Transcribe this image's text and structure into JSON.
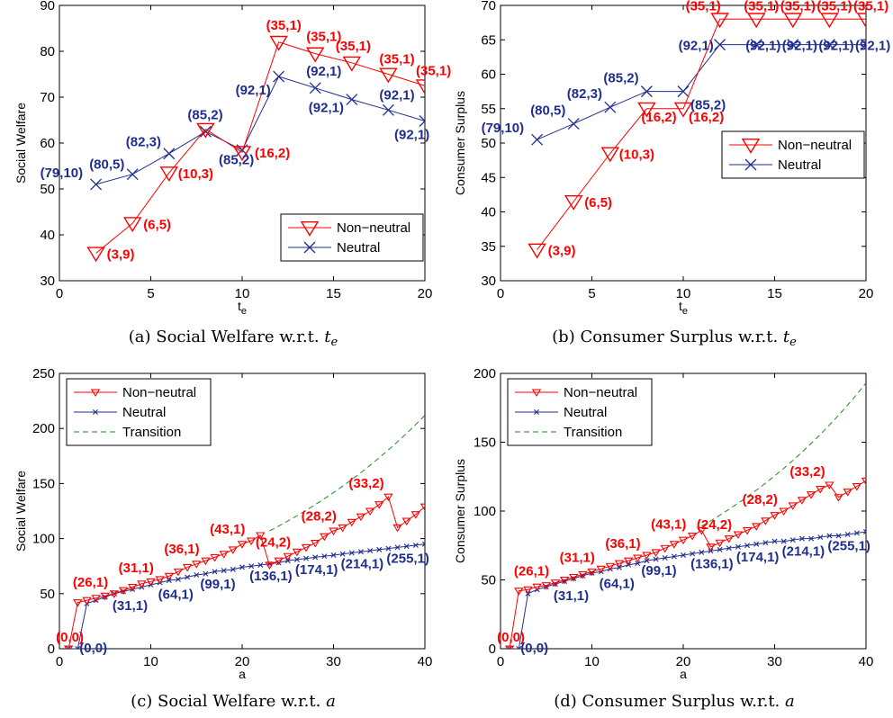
{
  "chart_data": [
    {
      "type": "line",
      "caption": "(a) Social Welfare w.r.t. t",
      "caption_sub": "e",
      "xlabel": "t",
      "xlabel_sub": "e",
      "ylabel": "Social Welfare",
      "xlim": [
        0,
        20
      ],
      "ylim": [
        30,
        90
      ],
      "xticks": [
        "0",
        "5",
        "10",
        "15",
        "20"
      ],
      "yticks": [
        "30",
        "40",
        "50",
        "60",
        "70",
        "80",
        "90"
      ],
      "legend_position": "bottom-right",
      "series": [
        {
          "name": "Non−neutral",
          "color": "#ff0000",
          "marker": "big-triangle",
          "x": [
            2,
            4,
            6,
            8,
            10,
            12,
            14,
            16,
            18,
            20
          ],
          "y": [
            36,
            42.5,
            53.5,
            63,
            58,
            82,
            79.5,
            77.5,
            75,
            72.5
          ],
          "labels": [
            "(3,9)",
            "(6,5)",
            "(10,3)",
            "",
            "(16,2)",
            "(35,1)",
            "(35,1)",
            "(35,1)",
            "(35,1)",
            "(35,1)"
          ]
        },
        {
          "name": "Neutral",
          "color": "#1f2e8f",
          "marker": "big-x",
          "x": [
            2,
            4,
            6,
            8,
            10,
            12,
            14,
            16,
            18,
            20
          ],
          "y": [
            51,
            53.2,
            57.7,
            62.5,
            58.5,
            74.5,
            72,
            69.5,
            67.2,
            64.8
          ],
          "labels": [
            "(79,10)",
            "(80,5)",
            "(82,3)",
            "(85,2)",
            "(85,2)",
            "(92,1)",
            "(92,1)",
            "(92,1)",
            "(92,1)",
            "(92,1)"
          ]
        }
      ]
    },
    {
      "type": "line",
      "caption": "(b) Consumer Surplus w.r.t. t",
      "caption_sub": "e",
      "xlabel": "t",
      "xlabel_sub": "e",
      "ylabel": "Consumer Surplus",
      "xlim": [
        0,
        20
      ],
      "ylim": [
        30,
        70
      ],
      "xticks": [
        "0",
        "5",
        "10",
        "15",
        "20"
      ],
      "yticks": [
        "30",
        "35",
        "40",
        "45",
        "50",
        "55",
        "60",
        "65",
        "70"
      ],
      "legend_position": "middle-right",
      "series": [
        {
          "name": "Non−neutral",
          "color": "#ff0000",
          "marker": "big-triangle",
          "x": [
            2,
            4,
            6,
            8,
            10,
            12,
            14,
            16,
            18,
            20
          ],
          "y": [
            34.5,
            41.5,
            48.5,
            55,
            55,
            68,
            68,
            68,
            68,
            68
          ],
          "labels": [
            "(3,9)",
            "(6,5)",
            "(10,3)",
            "(16,2)",
            "(16,2)",
            "(35,1)",
            "(35,1)",
            "(35,1)",
            "(35,1)",
            "(35,1)"
          ]
        },
        {
          "name": "Neutral",
          "color": "#1f2e8f",
          "marker": "big-x",
          "x": [
            2,
            4,
            6,
            8,
            10,
            12,
            14,
            16,
            18,
            20
          ],
          "y": [
            50.5,
            52.8,
            55.2,
            57.5,
            57.5,
            64.3,
            64.3,
            64.3,
            64.3,
            64.3
          ],
          "labels": [
            "(79,10)",
            "(80,5)",
            "(82,3)",
            "(85,2)",
            "(85,2)",
            "(92,1)",
            "(92,1)",
            "(92,1)",
            "(92,1)",
            "(92,1)"
          ]
        }
      ]
    },
    {
      "type": "line",
      "caption": "(c) Social Welfare w.r.t. ",
      "caption_var": "a",
      "xlabel": "a",
      "ylabel": "Social Welfare",
      "xlim": [
        0,
        40
      ],
      "ylim": [
        0,
        250
      ],
      "xticks": [
        "0",
        "10",
        "20",
        "30",
        "40"
      ],
      "yticks": [
        "0",
        "50",
        "100",
        "150",
        "200",
        "250"
      ],
      "legend_position": "top-left",
      "transition_curve": {
        "name": "Transition",
        "color": "#228b22",
        "x_start": 23,
        "x_end": 40,
        "y_start": 107,
        "y_end": 212,
        "style": "dashed"
      },
      "series": [
        {
          "name": "Non−neutral",
          "color": "#ff0000",
          "marker": "small-triangle",
          "x": [
            1,
            2,
            3,
            4,
            5,
            6,
            7,
            8,
            9,
            10,
            11,
            12,
            13,
            14,
            15,
            16,
            17,
            18,
            19,
            20,
            21,
            22,
            23,
            24,
            25,
            26,
            27,
            28,
            29,
            30,
            31,
            32,
            33,
            34,
            35,
            36,
            37,
            38,
            39,
            40
          ],
          "y": [
            0,
            42,
            44,
            46,
            48,
            50,
            53,
            56,
            59,
            61,
            63,
            66,
            70,
            74,
            77,
            80,
            83,
            86,
            90,
            95,
            98,
            103,
            76,
            80,
            84,
            88,
            92,
            96,
            102,
            107,
            110,
            115,
            120,
            125,
            131,
            138,
            110,
            116,
            122,
            129
          ],
          "labels": [
            {
              "x": 1,
              "y": 0,
              "text": "(0,0)"
            },
            {
              "x": 6,
              "y": 50,
              "text": "(26,1)"
            },
            {
              "x": 11,
              "y": 63,
              "text": "(31,1)"
            },
            {
              "x": 16,
              "y": 80,
              "text": "(36,1)"
            },
            {
              "x": 21,
              "y": 98,
              "text": "(43,1)"
            },
            {
              "x": 26,
              "y": 88,
              "text": "(24,2)"
            },
            {
              "x": 31,
              "y": 110,
              "text": "(28,2)"
            },
            {
              "x": 36,
              "y": 138,
              "text": "(33,2)"
            }
          ]
        },
        {
          "name": "Neutral",
          "color": "#1f2e8f",
          "marker": "small-x",
          "x": [
            1,
            2,
            3,
            4,
            5,
            6,
            7,
            8,
            9,
            10,
            11,
            12,
            13,
            14,
            15,
            16,
            17,
            18,
            19,
            20,
            21,
            22,
            23,
            24,
            25,
            26,
            27,
            28,
            29,
            30,
            31,
            32,
            33,
            34,
            35,
            36,
            37,
            38,
            39,
            40
          ],
          "y": [
            0,
            0,
            41,
            44,
            47,
            50,
            52,
            54,
            56,
            58,
            60,
            62,
            63,
            65,
            67,
            68,
            70,
            71,
            72,
            74,
            75,
            76,
            77,
            78,
            80,
            81,
            82,
            83,
            84,
            85,
            86,
            87,
            88,
            89,
            90,
            91,
            92,
            93,
            94,
            95
          ],
          "labels": [
            {
              "x": 2,
              "y": 0,
              "text": "(0,0)"
            },
            {
              "x": 6,
              "y": 50,
              "text": "(31,1)"
            },
            {
              "x": 11,
              "y": 60,
              "text": "(64,1)"
            },
            {
              "x": 16,
              "y": 68,
              "text": "(99,1)"
            },
            {
              "x": 21,
              "y": 75,
              "text": "(136,1)"
            },
            {
              "x": 26,
              "y": 81,
              "text": "(174,1)"
            },
            {
              "x": 31,
              "y": 86,
              "text": "(214,1)"
            },
            {
              "x": 36,
              "y": 91,
              "text": "(255,1)"
            }
          ]
        }
      ]
    },
    {
      "type": "line",
      "caption": "(d) Consumer Surplus w.r.t. ",
      "caption_var": "a",
      "xlabel": "a",
      "ylabel": "Consumer Surplus",
      "xlim": [
        0,
        40
      ],
      "ylim": [
        0,
        200
      ],
      "xticks": [
        "0",
        "10",
        "20",
        "30",
        "40"
      ],
      "yticks": [
        "0",
        "50",
        "100",
        "150",
        "200"
      ],
      "legend_position": "top-left",
      "transition_curve": {
        "name": "Transition",
        "color": "#228b22",
        "x_start": 22,
        "x_end": 40,
        "y_start": 89,
        "y_end": 193,
        "style": "dashed"
      },
      "series": [
        {
          "name": "Non−neutral",
          "color": "#ff0000",
          "marker": "small-triangle",
          "x": [
            1,
            2,
            3,
            4,
            5,
            6,
            7,
            8,
            9,
            10,
            11,
            12,
            13,
            14,
            15,
            16,
            17,
            18,
            19,
            20,
            21,
            22,
            23,
            24,
            25,
            26,
            27,
            28,
            29,
            30,
            31,
            32,
            33,
            34,
            35,
            36,
            37,
            38,
            39,
            40
          ],
          "y": [
            0,
            42,
            43,
            45,
            46,
            48,
            50,
            52,
            54,
            56,
            58,
            60,
            62,
            64,
            66,
            68,
            70,
            73,
            76,
            79,
            82,
            86,
            74,
            77,
            80,
            83,
            86,
            89,
            93,
            97,
            100,
            104,
            108,
            112,
            116,
            119,
            110,
            114,
            118,
            122
          ],
          "labels": [
            {
              "x": 1,
              "y": 0,
              "text": "(0,0)"
            },
            {
              "x": 6,
              "y": 48,
              "text": "(26,1)"
            },
            {
              "x": 11,
              "y": 58,
              "text": "(31,1)"
            },
            {
              "x": 16,
              "y": 68,
              "text": "(36,1)"
            },
            {
              "x": 21,
              "y": 82,
              "text": "(43,1)"
            },
            {
              "x": 26,
              "y": 83,
              "text": "(24,2)"
            },
            {
              "x": 31,
              "y": 100,
              "text": "(28,2)"
            },
            {
              "x": 36,
              "y": 119,
              "text": "(33,2)"
            }
          ]
        },
        {
          "name": "Neutral",
          "color": "#1f2e8f",
          "marker": "small-x",
          "x": [
            1,
            2,
            3,
            4,
            5,
            6,
            7,
            8,
            9,
            10,
            11,
            12,
            13,
            14,
            15,
            16,
            17,
            18,
            19,
            20,
            21,
            22,
            23,
            24,
            25,
            26,
            27,
            28,
            29,
            30,
            31,
            32,
            33,
            34,
            35,
            36,
            37,
            38,
            39,
            40
          ],
          "y": [
            0,
            0,
            40,
            43,
            45,
            47,
            49,
            51,
            53,
            55,
            56,
            58,
            59,
            61,
            62,
            64,
            65,
            66,
            67,
            68,
            69,
            70,
            71,
            72,
            73,
            74,
            75,
            76,
            77,
            78,
            78,
            79,
            80,
            80,
            81,
            82,
            82,
            83,
            84,
            85
          ],
          "labels": [
            {
              "x": 2,
              "y": 0,
              "text": "(0,0)"
            },
            {
              "x": 6,
              "y": 47,
              "text": "(31,1)"
            },
            {
              "x": 11,
              "y": 56,
              "text": "(64,1)"
            },
            {
              "x": 16,
              "y": 64,
              "text": "(99,1)"
            },
            {
              "x": 21,
              "y": 69,
              "text": "(136,1)"
            },
            {
              "x": 26,
              "y": 74,
              "text": "(174,1)"
            },
            {
              "x": 31,
              "y": 78,
              "text": "(214,1)"
            },
            {
              "x": 36,
              "y": 82,
              "text": "(255,1)"
            }
          ]
        }
      ]
    }
  ]
}
